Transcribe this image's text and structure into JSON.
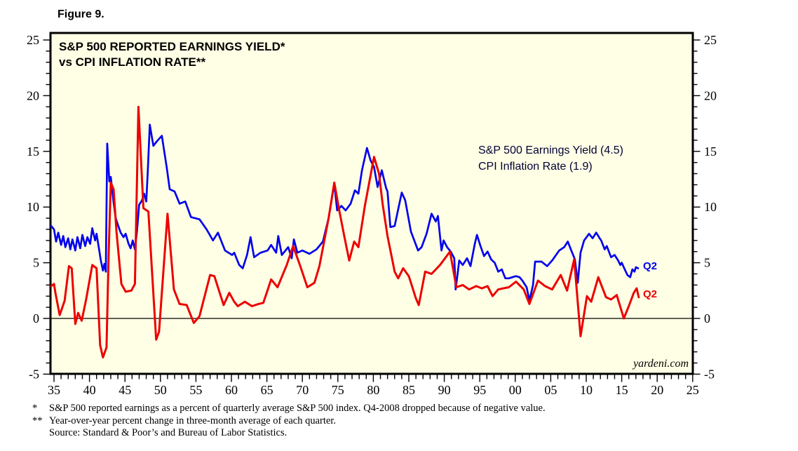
{
  "figure": {
    "label": "Figure 9."
  },
  "chart": {
    "title_line1": "S&P 500 REPORTED EARNINGS YIELD*",
    "title_line2": "vs CPI INFLATION RATE**",
    "legend": [
      "S&P 500 Earnings Yield (4.5)",
      "CPI Inflation Rate (1.9)"
    ],
    "end_labels": {
      "blue": "Q2",
      "red": "Q2"
    },
    "watermark": "yardeni.com",
    "colors": {
      "plot_background": "#FFFFE6",
      "frame": "#000000",
      "earnings_yield_line": "#0000EE",
      "cpi_line": "#EC0000",
      "legend_text": "#000033"
    }
  },
  "chart_data": {
    "type": "line",
    "title": "S&P 500 REPORTED EARNINGS YIELD* vs CPI INFLATION RATE**",
    "xlabel": "",
    "ylabel": "",
    "grid": false,
    "legend_position": "inside-right",
    "x_axis": {
      "range_years": [
        1935,
        2025
      ],
      "tick_labels": [
        "35",
        "40",
        "45",
        "50",
        "55",
        "60",
        "65",
        "70",
        "75",
        "80",
        "85",
        "90",
        "95",
        "00",
        "05",
        "10",
        "15",
        "20",
        "25"
      ],
      "minor_tick_every_years": 1,
      "major_tick_every_years": 5
    },
    "y_axis": {
      "range": [
        -5.6,
        25.6
      ],
      "tick_values": [
        -5,
        0,
        5,
        10,
        15,
        20,
        25
      ],
      "minor_tick_every": 1,
      "labels_on_both_sides": true
    },
    "zero_line": true,
    "series": [
      {
        "name": "S&P 500 Earnings Yield",
        "last_point_label": "Q2",
        "last_value": 4.5,
        "color": "#0000EE",
        "points": [
          [
            1934.6,
            8.3
          ],
          [
            1935.0,
            8.0
          ],
          [
            1935.3,
            6.9
          ],
          [
            1935.6,
            7.7
          ],
          [
            1936.0,
            6.6
          ],
          [
            1936.3,
            7.4
          ],
          [
            1936.6,
            6.4
          ],
          [
            1937.0,
            7.2
          ],
          [
            1937.3,
            6.2
          ],
          [
            1937.6,
            7.1
          ],
          [
            1938.0,
            6.1
          ],
          [
            1938.3,
            7.3
          ],
          [
            1938.7,
            6.3
          ],
          [
            1939.0,
            7.5
          ],
          [
            1939.4,
            6.5
          ],
          [
            1939.7,
            7.3
          ],
          [
            1940.1,
            6.7
          ],
          [
            1940.4,
            8.1
          ],
          [
            1940.8,
            7.0
          ],
          [
            1941.0,
            7.6
          ],
          [
            1941.3,
            6.4
          ],
          [
            1941.6,
            5.2
          ],
          [
            1941.9,
            4.3
          ],
          [
            1942.1,
            4.9
          ],
          [
            1942.3,
            4.2
          ],
          [
            1942.5,
            15.7
          ],
          [
            1942.8,
            12.3
          ],
          [
            1943.0,
            12.7
          ],
          [
            1943.4,
            10.4
          ],
          [
            1943.7,
            9.0
          ],
          [
            1944.0,
            8.4
          ],
          [
            1944.4,
            7.7
          ],
          [
            1944.8,
            7.3
          ],
          [
            1945.1,
            7.6
          ],
          [
            1945.5,
            6.7
          ],
          [
            1945.8,
            6.3
          ],
          [
            1946.1,
            7.0
          ],
          [
            1946.4,
            6.2
          ],
          [
            1946.7,
            7.9
          ],
          [
            1947.0,
            10.2
          ],
          [
            1947.4,
            10.6
          ],
          [
            1947.7,
            11.2
          ],
          [
            1948.0,
            10.5
          ],
          [
            1948.2,
            13.0
          ],
          [
            1948.5,
            17.4
          ],
          [
            1949.0,
            15.5
          ],
          [
            1949.5,
            15.9
          ],
          [
            1950.2,
            16.4
          ],
          [
            1950.9,
            13.5
          ],
          [
            1951.3,
            11.6
          ],
          [
            1952.0,
            11.4
          ],
          [
            1952.7,
            10.3
          ],
          [
            1953.5,
            10.5
          ],
          [
            1954.3,
            9.1
          ],
          [
            1955.5,
            8.9
          ],
          [
            1956.5,
            8.0
          ],
          [
            1957.4,
            7.0
          ],
          [
            1958.1,
            7.7
          ],
          [
            1959.1,
            6.1
          ],
          [
            1960.1,
            5.7
          ],
          [
            1960.4,
            5.9
          ],
          [
            1961.1,
            4.8
          ],
          [
            1961.6,
            4.5
          ],
          [
            1962.2,
            5.7
          ],
          [
            1962.7,
            7.3
          ],
          [
            1963.2,
            5.5
          ],
          [
            1964.1,
            5.9
          ],
          [
            1965.1,
            6.1
          ],
          [
            1965.6,
            6.6
          ],
          [
            1966.3,
            5.9
          ],
          [
            1966.6,
            7.4
          ],
          [
            1967.1,
            5.7
          ],
          [
            1968.0,
            6.4
          ],
          [
            1968.5,
            5.4
          ],
          [
            1968.8,
            7.1
          ],
          [
            1969.3,
            5.9
          ],
          [
            1970.0,
            6.1
          ],
          [
            1971.0,
            5.8
          ],
          [
            1972.0,
            6.2
          ],
          [
            1972.9,
            6.9
          ],
          [
            1973.7,
            9.0
          ],
          [
            1974.5,
            12.1
          ],
          [
            1974.9,
            9.7
          ],
          [
            1975.5,
            10.1
          ],
          [
            1976.1,
            9.7
          ],
          [
            1976.8,
            10.3
          ],
          [
            1977.4,
            11.5
          ],
          [
            1977.9,
            11.2
          ],
          [
            1978.4,
            13.3
          ],
          [
            1979.1,
            15.3
          ],
          [
            1979.6,
            14.2
          ],
          [
            1980.1,
            13.6
          ],
          [
            1980.6,
            11.8
          ],
          [
            1981.2,
            13.3
          ],
          [
            1981.8,
            11.7
          ],
          [
            1982.0,
            11.4
          ],
          [
            1982.4,
            8.2
          ],
          [
            1983.0,
            8.3
          ],
          [
            1984.0,
            11.3
          ],
          [
            1984.5,
            10.6
          ],
          [
            1985.3,
            7.8
          ],
          [
            1986.3,
            6.1
          ],
          [
            1986.8,
            6.4
          ],
          [
            1987.5,
            7.6
          ],
          [
            1988.2,
            9.4
          ],
          [
            1988.8,
            8.7
          ],
          [
            1989.1,
            9.2
          ],
          [
            1989.6,
            6.1
          ],
          [
            1989.9,
            7.0
          ],
          [
            1990.4,
            6.4
          ],
          [
            1990.9,
            6.0
          ],
          [
            1991.4,
            5.4
          ],
          [
            1991.6,
            2.6
          ],
          [
            1992.1,
            5.2
          ],
          [
            1992.6,
            4.8
          ],
          [
            1993.2,
            5.4
          ],
          [
            1993.7,
            4.7
          ],
          [
            1994.3,
            6.7
          ],
          [
            1994.6,
            7.5
          ],
          [
            1995.1,
            6.5
          ],
          [
            1995.6,
            5.6
          ],
          [
            1996.1,
            6.0
          ],
          [
            1996.6,
            5.3
          ],
          [
            1997.1,
            5.0
          ],
          [
            1997.6,
            4.2
          ],
          [
            1998.1,
            4.4
          ],
          [
            1998.6,
            3.6
          ],
          [
            1999.1,
            3.6
          ],
          [
            1999.6,
            3.7
          ],
          [
            2000.1,
            3.8
          ],
          [
            2000.6,
            3.7
          ],
          [
            2001.0,
            3.4
          ],
          [
            2001.6,
            2.8
          ],
          [
            2002.0,
            1.6
          ],
          [
            2002.5,
            3.0
          ],
          [
            2002.8,
            5.1
          ],
          [
            2003.7,
            5.1
          ],
          [
            2004.5,
            4.7
          ],
          [
            2005.2,
            5.2
          ],
          [
            2006.2,
            6.1
          ],
          [
            2006.9,
            6.4
          ],
          [
            2007.4,
            6.9
          ],
          [
            2007.9,
            6.1
          ],
          [
            2008.4,
            5.3
          ],
          [
            2008.8,
            3.2
          ],
          [
            2009.2,
            5.9
          ],
          [
            2009.7,
            7.0
          ],
          [
            2010.4,
            7.6
          ],
          [
            2010.9,
            7.2
          ],
          [
            2011.4,
            7.7
          ],
          [
            2011.9,
            7.2
          ],
          [
            2012.1,
            7.0
          ],
          [
            2012.6,
            6.2
          ],
          [
            2012.9,
            6.5
          ],
          [
            2013.5,
            5.5
          ],
          [
            2014.0,
            5.7
          ],
          [
            2014.5,
            5.2
          ],
          [
            2014.8,
            4.8
          ],
          [
            2015.0,
            5.0
          ],
          [
            2015.5,
            4.3
          ],
          [
            2015.8,
            3.9
          ],
          [
            2016.2,
            3.7
          ],
          [
            2016.5,
            4.4
          ],
          [
            2016.8,
            4.2
          ],
          [
            2017.0,
            4.6
          ],
          [
            2017.3,
            4.5
          ]
        ]
      },
      {
        "name": "CPI Inflation Rate",
        "last_point_label": "Q2",
        "last_value": 1.9,
        "color": "#EC0000",
        "points": [
          [
            1934.6,
            2.9
          ],
          [
            1935.0,
            3.1
          ],
          [
            1935.2,
            2.3
          ],
          [
            1935.8,
            0.3
          ],
          [
            1936.5,
            1.6
          ],
          [
            1937.1,
            4.7
          ],
          [
            1937.5,
            4.5
          ],
          [
            1938.0,
            -0.5
          ],
          [
            1938.4,
            0.5
          ],
          [
            1938.9,
            -0.2
          ],
          [
            1939.5,
            1.6
          ],
          [
            1940.4,
            4.8
          ],
          [
            1941.0,
            4.5
          ],
          [
            1941.5,
            -2.4
          ],
          [
            1941.9,
            -3.5
          ],
          [
            1942.4,
            -2.6
          ],
          [
            1942.7,
            5.7
          ],
          [
            1943.0,
            12.2
          ],
          [
            1943.4,
            11.6
          ],
          [
            1943.8,
            7.8
          ],
          [
            1944.5,
            3.1
          ],
          [
            1945.1,
            2.4
          ],
          [
            1945.9,
            2.5
          ],
          [
            1946.4,
            3.1
          ],
          [
            1946.9,
            19.0
          ],
          [
            1947.6,
            9.9
          ],
          [
            1948.3,
            9.6
          ],
          [
            1949.4,
            -1.9
          ],
          [
            1949.8,
            -1.2
          ],
          [
            1951.0,
            9.4
          ],
          [
            1951.9,
            2.6
          ],
          [
            1952.7,
            1.3
          ],
          [
            1953.7,
            1.2
          ],
          [
            1954.7,
            -0.4
          ],
          [
            1955.5,
            0.2
          ],
          [
            1957.0,
            3.9
          ],
          [
            1957.6,
            3.8
          ],
          [
            1958.9,
            1.2
          ],
          [
            1959.7,
            2.3
          ],
          [
            1960.4,
            1.5
          ],
          [
            1960.9,
            1.1
          ],
          [
            1961.9,
            1.5
          ],
          [
            1962.9,
            1.1
          ],
          [
            1963.8,
            1.3
          ],
          [
            1964.5,
            1.4
          ],
          [
            1965.6,
            3.5
          ],
          [
            1966.5,
            2.8
          ],
          [
            1967.8,
            4.8
          ],
          [
            1968.7,
            6.5
          ],
          [
            1969.7,
            4.7
          ],
          [
            1970.7,
            2.8
          ],
          [
            1971.7,
            3.2
          ],
          [
            1972.4,
            4.7
          ],
          [
            1973.7,
            9.0
          ],
          [
            1974.5,
            12.2
          ],
          [
            1975.2,
            9.7
          ],
          [
            1975.9,
            7.4
          ],
          [
            1976.6,
            5.2
          ],
          [
            1977.3,
            6.9
          ],
          [
            1977.9,
            6.4
          ],
          [
            1978.8,
            10.1
          ],
          [
            1980.1,
            14.5
          ],
          [
            1980.8,
            13.0
          ],
          [
            1981.3,
            10.3
          ],
          [
            1982.0,
            7.4
          ],
          [
            1983.0,
            4.2
          ],
          [
            1983.5,
            3.6
          ],
          [
            1984.2,
            4.5
          ],
          [
            1985.0,
            3.8
          ],
          [
            1986.0,
            1.8
          ],
          [
            1986.4,
            1.2
          ],
          [
            1987.3,
            4.2
          ],
          [
            1988.2,
            4.0
          ],
          [
            1989.4,
            4.8
          ],
          [
            1990.8,
            6.0
          ],
          [
            1991.7,
            2.8
          ],
          [
            1992.6,
            3.0
          ],
          [
            1993.5,
            2.6
          ],
          [
            1994.5,
            2.9
          ],
          [
            1995.3,
            2.7
          ],
          [
            1996.1,
            2.9
          ],
          [
            1996.8,
            2.0
          ],
          [
            1997.6,
            2.6
          ],
          [
            1998.3,
            2.7
          ],
          [
            1999.1,
            2.8
          ],
          [
            2000.1,
            3.3
          ],
          [
            2001.2,
            2.6
          ],
          [
            2002.0,
            1.3
          ],
          [
            2003.2,
            3.4
          ],
          [
            2004.2,
            2.9
          ],
          [
            2005.2,
            2.6
          ],
          [
            2006.4,
            3.9
          ],
          [
            2007.3,
            2.5
          ],
          [
            2008.3,
            5.3
          ],
          [
            2008.7,
            2.3
          ],
          [
            2009.2,
            -1.6
          ],
          [
            2010.1,
            2.0
          ],
          [
            2010.7,
            1.5
          ],
          [
            2011.7,
            3.7
          ],
          [
            2012.8,
            1.9
          ],
          [
            2013.5,
            1.7
          ],
          [
            2014.3,
            2.1
          ],
          [
            2015.3,
            0.0
          ],
          [
            2016.0,
            1.1
          ],
          [
            2016.7,
            2.3
          ],
          [
            2017.1,
            2.7
          ],
          [
            2017.4,
            1.9
          ]
        ]
      }
    ]
  },
  "footnotes": [
    {
      "marker": "*",
      "text": "S&P 500 reported earnings as a percent of quarterly average S&P 500 index. Q4-2008 dropped because of negative value."
    },
    {
      "marker": "**",
      "text": "Year-over-year percent change in three-month average of each quarter."
    },
    {
      "marker": "",
      "text": "Source: Standard & Poor’s and Bureau of Labor Statistics."
    }
  ]
}
